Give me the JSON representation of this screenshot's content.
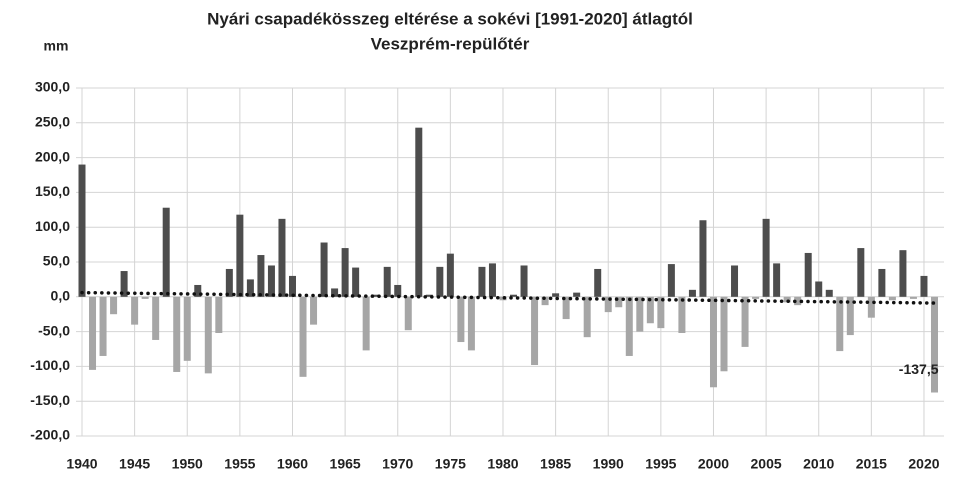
{
  "chart_data": {
    "type": "bar",
    "title": "Nyári csapadékösszeg eltérése a sokévi [1991-2020] átlagtól",
    "subtitle": "Veszprém-repülőtér",
    "ylabel": "mm",
    "x": [
      1940,
      1941,
      1942,
      1943,
      1944,
      1945,
      1946,
      1947,
      1948,
      1949,
      1950,
      1951,
      1952,
      1953,
      1954,
      1955,
      1956,
      1957,
      1958,
      1959,
      1960,
      1961,
      1962,
      1963,
      1964,
      1965,
      1966,
      1967,
      1968,
      1969,
      1970,
      1971,
      1972,
      1973,
      1974,
      1975,
      1976,
      1977,
      1978,
      1979,
      1980,
      1981,
      1982,
      1983,
      1984,
      1985,
      1986,
      1987,
      1988,
      1989,
      1990,
      1991,
      1992,
      1993,
      1994,
      1995,
      1996,
      1997,
      1998,
      1999,
      2000,
      2001,
      2002,
      2003,
      2004,
      2005,
      2006,
      2007,
      2008,
      2009,
      2010,
      2011,
      2012,
      2013,
      2014,
      2015,
      2016,
      2017,
      2018,
      2019,
      2020,
      2021
    ],
    "values": [
      190,
      -105,
      -85,
      -25,
      37,
      -40,
      -3,
      -62,
      128,
      -108,
      -92,
      17,
      -110,
      -52,
      40,
      118,
      25,
      60,
      45,
      112,
      30,
      -115,
      -40,
      78,
      12,
      70,
      42,
      -77,
      3,
      43,
      17,
      -48,
      243,
      3,
      43,
      62,
      -65,
      -77,
      43,
      48,
      -5,
      3,
      45,
      -98,
      -12,
      5,
      -32,
      6,
      -58,
      40,
      -22,
      -15,
      -85,
      -50,
      -38,
      -45,
      47,
      -52,
      10,
      110,
      -130,
      -107,
      45,
      -72,
      -3,
      112,
      48,
      -8,
      -12,
      63,
      22,
      10,
      -78,
      -55,
      70,
      -30,
      40,
      -5,
      67,
      -3,
      30,
      -137.5
    ],
    "value_labels": [
      null,
      null,
      null,
      null,
      null,
      null,
      null,
      null,
      null,
      null,
      null,
      null,
      null,
      null,
      null,
      null,
      null,
      null,
      null,
      null,
      null,
      null,
      null,
      null,
      null,
      null,
      null,
      null,
      null,
      null,
      null,
      null,
      null,
      null,
      null,
      null,
      null,
      null,
      null,
      null,
      null,
      null,
      null,
      null,
      null,
      null,
      null,
      null,
      null,
      null,
      null,
      null,
      null,
      null,
      null,
      null,
      null,
      null,
      null,
      null,
      null,
      null,
      null,
      null,
      null,
      null,
      null,
      null,
      null,
      null,
      null,
      null,
      null,
      null,
      null,
      null,
      null,
      null,
      null,
      null,
      null,
      "-137,5"
    ],
    "colors": {
      "positive": "#4d4d4d",
      "negative": "#a6a6a6",
      "trend": "#111111"
    },
    "trend": {
      "x": [
        1940,
        2021
      ],
      "values": [
        6,
        -9
      ]
    },
    "xlim": [
      1940,
      2021
    ],
    "xticks": [
      1940,
      1945,
      1950,
      1955,
      1960,
      1965,
      1970,
      1975,
      1980,
      1985,
      1990,
      1995,
      2000,
      2005,
      2010,
      2015,
      2020
    ],
    "ylim": [
      -200,
      300
    ],
    "yticks": [
      {
        "value": 300,
        "label": "300,0"
      },
      {
        "value": 250,
        "label": "250,0"
      },
      {
        "value": 200,
        "label": "200,0"
      },
      {
        "value": 150,
        "label": "150,0"
      },
      {
        "value": 100,
        "label": "100,0"
      },
      {
        "value": 50,
        "label": "50,0"
      },
      {
        "value": 0,
        "label": "0,0"
      },
      {
        "value": -50,
        "label": "-50,0"
      },
      {
        "value": -100,
        "label": "-100,0"
      },
      {
        "value": -150,
        "label": "-150,0"
      },
      {
        "value": -200,
        "label": "-200,0"
      }
    ],
    "grid": true
  }
}
